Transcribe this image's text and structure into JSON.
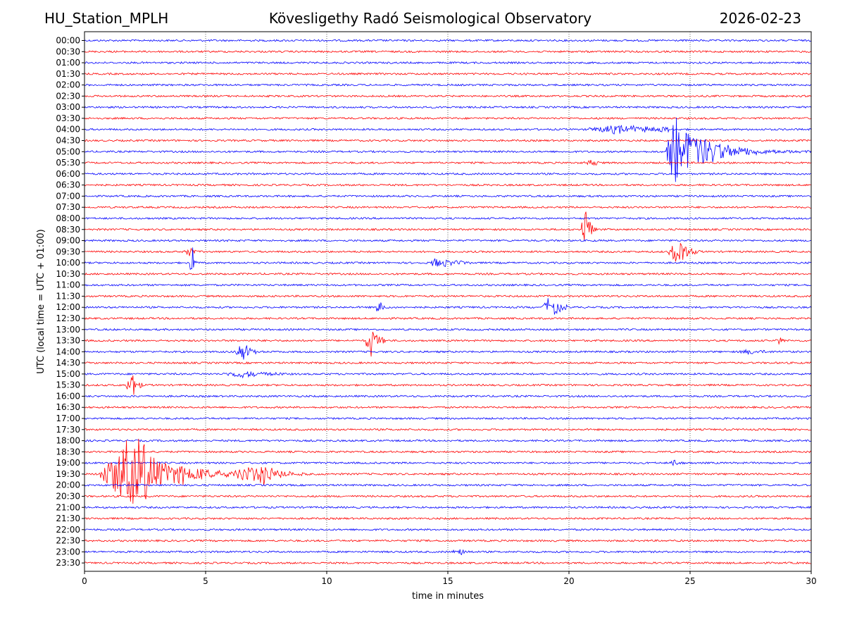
{
  "header": {
    "station": "HU_Station_MPLH",
    "observatory": "Kövesligethy Radó Seismological Observatory",
    "date": "2026-02-23"
  },
  "chart_data": {
    "type": "line",
    "title": "Kövesligethy Radó Seismological Observatory",
    "xlabel": "time in minutes",
    "ylabel": "UTC (local time = UTC + 01:00)",
    "xlim": [
      0,
      30
    ],
    "x_ticks": [
      0,
      5,
      10,
      15,
      20,
      25,
      30
    ],
    "x_tick_labels": [
      "0",
      "5",
      "10",
      "15",
      "20",
      "25",
      "30"
    ],
    "grid": "vertical dotted lines at x ticks",
    "trace_colors": [
      "#0000ff",
      "#ff0000"
    ],
    "color_rule": "rows alternate blue (on the hour) and red (half past)",
    "rows": [
      "00:00",
      "00:30",
      "01:00",
      "01:30",
      "02:00",
      "02:30",
      "03:00",
      "03:30",
      "04:00",
      "04:30",
      "05:00",
      "05:30",
      "06:00",
      "06:30",
      "07:00",
      "07:30",
      "08:00",
      "08:30",
      "09:00",
      "09:30",
      "10:00",
      "10:30",
      "11:00",
      "11:30",
      "12:00",
      "12:30",
      "13:00",
      "13:30",
      "14:00",
      "14:30",
      "15:00",
      "15:30",
      "16:00",
      "16:30",
      "17:00",
      "17:30",
      "18:00",
      "18:30",
      "19:00",
      "19:30",
      "20:00",
      "20:30",
      "21:00",
      "21:30",
      "22:00",
      "22:30",
      "23:00",
      "23:30"
    ],
    "events": [
      {
        "row": "04:00",
        "start_min": 20.7,
        "peak_min": 21.9,
        "end_min": 24.1,
        "amp_rows": 0.35,
        "decay_min": 3.5
      },
      {
        "row": "05:00",
        "start_min": 24.0,
        "peak_min": 24.4,
        "end_min": 30.0,
        "amp_rows": 4.0,
        "decay_min": 1.2
      },
      {
        "row": "05:30",
        "start_min": 20.6,
        "peak_min": 20.9,
        "end_min": 21.3,
        "amp_rows": 0.3,
        "decay_min": 0.3
      },
      {
        "row": "08:30",
        "start_min": 20.5,
        "peak_min": 20.75,
        "end_min": 21.2,
        "amp_rows": 2.8,
        "decay_min": 0.12
      },
      {
        "row": "09:30",
        "start_min": 4.1,
        "peak_min": 4.4,
        "end_min": 4.7,
        "amp_rows": 0.6,
        "decay_min": 0.12
      },
      {
        "row": "10:00",
        "start_min": 4.35,
        "peak_min": 4.45,
        "end_min": 4.7,
        "amp_rows": 2.4,
        "decay_min": 0.06
      },
      {
        "row": "09:30",
        "start_min": 24.1,
        "peak_min": 24.6,
        "end_min": 25.4,
        "amp_rows": 1.4,
        "decay_min": 0.3
      },
      {
        "row": "10:00",
        "start_min": 14.3,
        "peak_min": 14.6,
        "end_min": 16.0,
        "amp_rows": 0.55,
        "decay_min": 0.6
      },
      {
        "row": "12:00",
        "start_min": 12.0,
        "peak_min": 12.2,
        "end_min": 12.5,
        "amp_rows": 0.9,
        "decay_min": 0.12
      },
      {
        "row": "12:00",
        "start_min": 18.9,
        "peak_min": 19.3,
        "end_min": 19.9,
        "amp_rows": 1.1,
        "decay_min": 0.3
      },
      {
        "row": "13:30",
        "start_min": 11.6,
        "peak_min": 11.8,
        "end_min": 12.4,
        "amp_rows": 1.8,
        "decay_min": 0.25
      },
      {
        "row": "14:00",
        "start_min": 6.2,
        "peak_min": 6.5,
        "end_min": 7.2,
        "amp_rows": 1.0,
        "decay_min": 0.3
      },
      {
        "row": "15:00",
        "start_min": 5.8,
        "peak_min": 6.4,
        "end_min": 8.2,
        "amp_rows": 0.3,
        "decay_min": 1.0
      },
      {
        "row": "15:30",
        "start_min": 1.7,
        "peak_min": 2.0,
        "end_min": 2.4,
        "amp_rows": 1.6,
        "decay_min": 0.15
      },
      {
        "row": "19:30",
        "start_min": 0.6,
        "peak_min": 2.1,
        "end_min": 10.0,
        "amp_rows": 4.2,
        "decay_min": 1.3
      },
      {
        "row": "19:30",
        "start_min": 6.1,
        "peak_min": 7.4,
        "end_min": 9.0,
        "amp_rows": 0.9,
        "decay_min": 0.6
      },
      {
        "row": "19:00",
        "start_min": 24.1,
        "peak_min": 24.3,
        "end_min": 24.8,
        "amp_rows": 0.3,
        "decay_min": 0.2
      },
      {
        "row": "23:00",
        "start_min": 15.2,
        "peak_min": 15.4,
        "end_min": 16.1,
        "amp_rows": 0.4,
        "decay_min": 0.3
      },
      {
        "row": "14:00",
        "start_min": 27.0,
        "peak_min": 27.5,
        "end_min": 29.0,
        "amp_rows": 0.2,
        "decay_min": 0.5
      },
      {
        "row": "13:30",
        "start_min": 28.5,
        "peak_min": 28.7,
        "end_min": 28.9,
        "amp_rows": 0.3,
        "decay_min": 0.1
      }
    ]
  }
}
